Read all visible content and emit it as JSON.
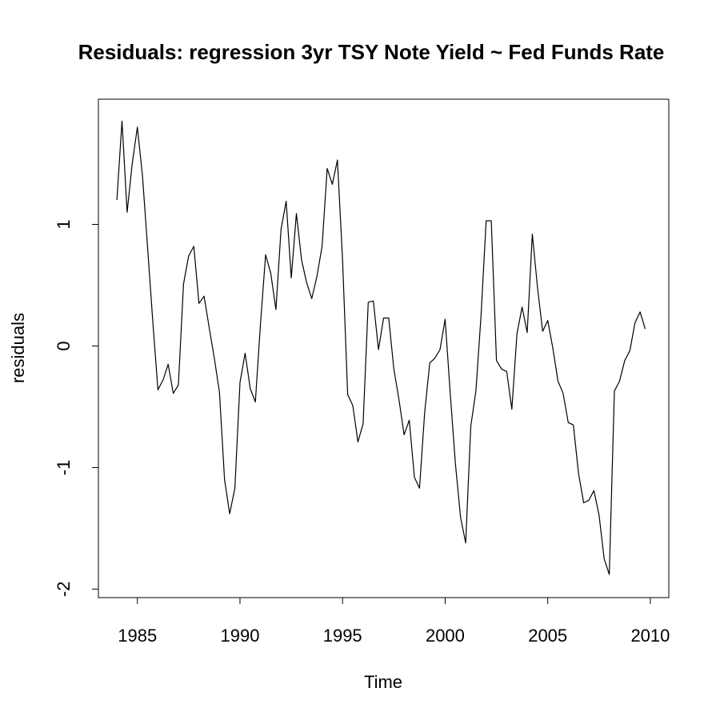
{
  "chart_data": {
    "type": "line",
    "title": "Residuals: regression 3yr TSY Note Yield ~ Fed Funds Rate",
    "xlabel": "Time",
    "ylabel": "residuals",
    "xlim": [
      1983.1,
      2010.9
    ],
    "ylim": [
      -2.07,
      2.03
    ],
    "xticks": [
      1985,
      1990,
      1995,
      2000,
      2005,
      2010
    ],
    "xtick_labels": [
      "1985",
      "1990",
      "1995",
      "2000",
      "2005",
      "2010"
    ],
    "yticks": [
      -2,
      -1,
      0,
      1
    ],
    "ytick_labels": [
      "-2",
      "-1",
      "0",
      "1"
    ],
    "grid": false,
    "legend": "none",
    "line_color": "#000000",
    "series": [
      {
        "x": [
          1984.0,
          1984.25,
          1984.5,
          1984.75,
          1985.0,
          1985.25,
          1985.5,
          1985.75,
          1986.0,
          1986.25,
          1986.5,
          1986.75,
          1987.0,
          1987.25,
          1987.5,
          1987.75,
          1988.0,
          1988.25,
          1988.5,
          1988.75,
          1989.0,
          1989.25,
          1989.5,
          1989.75,
          1990.0,
          1990.25,
          1990.5,
          1990.75,
          1991.0,
          1991.25,
          1991.5,
          1991.75,
          1992.0,
          1992.25,
          1992.5,
          1992.75,
          1993.0,
          1993.25,
          1993.5,
          1993.75,
          1994.0,
          1994.25,
          1994.5,
          1994.75,
          1995.0,
          1995.25,
          1995.5,
          1995.75,
          1996.0,
          1996.25,
          1996.5,
          1996.75,
          1997.0,
          1997.25,
          1997.5,
          1997.75,
          1998.0,
          1998.25,
          1998.5,
          1998.75,
          1999.0,
          1999.25,
          1999.5,
          1999.75,
          2000.0,
          2000.25,
          2000.5,
          2000.75,
          2001.0,
          2001.25,
          2001.5,
          2001.75,
          2002.0,
          2002.25,
          2002.5,
          2002.75,
          2003.0,
          2003.25,
          2003.5,
          2003.75,
          2004.0,
          2004.25,
          2004.5,
          2004.75,
          2005.0,
          2005.25,
          2005.5,
          2005.75,
          2006.0,
          2006.25,
          2006.5,
          2006.75,
          2007.0,
          2007.25,
          2007.5,
          2007.75,
          2008.0,
          2008.25,
          2008.5,
          2008.75,
          2009.0,
          2009.25,
          2009.5,
          2009.75
        ],
        "values": [
          1.2,
          1.85,
          1.1,
          1.5,
          1.8,
          1.4,
          0.8,
          0.2,
          -0.36,
          -0.28,
          -0.15,
          -0.39,
          -0.32,
          0.51,
          0.74,
          0.82,
          0.35,
          0.41,
          0.15,
          -0.1,
          -0.38,
          -1.1,
          -1.38,
          -1.17,
          -0.3,
          -0.06,
          -0.35,
          -0.46,
          0.18,
          0.75,
          0.6,
          0.3,
          0.96,
          1.19,
          0.56,
          1.09,
          0.71,
          0.52,
          0.39,
          0.57,
          0.82,
          1.46,
          1.33,
          1.53,
          0.71,
          -0.4,
          -0.49,
          -0.79,
          -0.64,
          0.36,
          0.37,
          -0.03,
          0.23,
          0.23,
          -0.19,
          -0.44,
          -0.73,
          -0.61,
          -1.08,
          -1.17,
          -0.55,
          -0.14,
          -0.1,
          -0.03,
          0.22,
          -0.4,
          -0.97,
          -1.41,
          -1.62,
          -0.66,
          -0.37,
          0.25,
          1.03,
          1.03,
          -0.12,
          -0.19,
          -0.21,
          -0.52,
          0.1,
          0.32,
          0.11,
          0.92,
          0.48,
          0.12,
          0.21,
          -0.02,
          -0.29,
          -0.39,
          -0.63,
          -0.65,
          -1.05,
          -1.29,
          -1.27,
          -1.19,
          -1.39,
          -1.75,
          -1.88,
          -0.37,
          -0.29,
          -0.12,
          -0.04,
          0.19,
          0.28,
          0.14
        ]
      }
    ]
  }
}
